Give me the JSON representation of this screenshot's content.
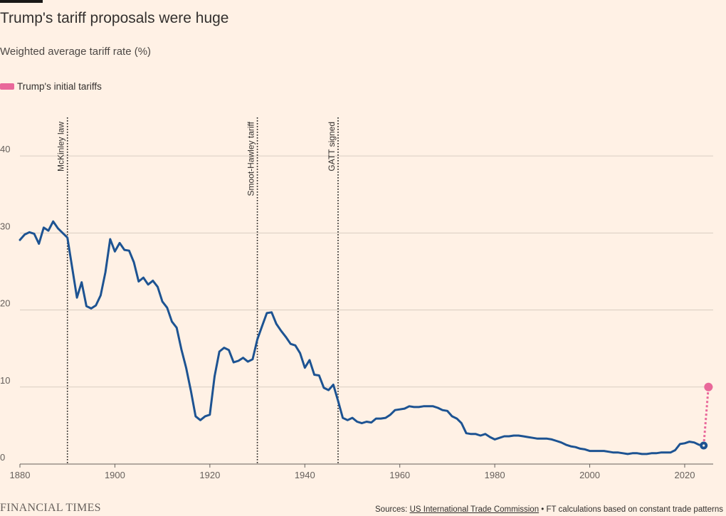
{
  "header": {
    "title": "Trump's tariff proposals were huge",
    "subtitle": "Weighted average tariff rate (%)"
  },
  "legend": {
    "label": "Trump's initial tariffs",
    "color": "#e9689a"
  },
  "footer": {
    "brand": "FINANCIAL TIMES",
    "source_prefix": "Sources: ",
    "source_link": "US International Trade Commission",
    "source_suffix": " • FT calculations based on constant trade patterns"
  },
  "colors": {
    "background": "#fff1e5",
    "series": "#1d5392",
    "trump": "#e9689a",
    "grid": "#d9cdc2",
    "axis": "#66605c"
  },
  "chart_data": {
    "type": "line",
    "title": "Trump's tariff proposals were huge",
    "subtitle": "Weighted average tariff rate (%)",
    "xlabel": "",
    "ylabel": "",
    "xlim": [
      1880,
      2026
    ],
    "ylim": [
      0,
      45
    ],
    "x_ticks": [
      1880,
      1900,
      1920,
      1940,
      1960,
      1980,
      2000,
      2020
    ],
    "y_ticks": [
      0,
      10,
      20,
      30,
      40
    ],
    "grid": true,
    "legend_placement": "top-left",
    "annotations": [
      {
        "x": 1890,
        "label": "McKinley law"
      },
      {
        "x": 1930,
        "label": "Smoot-Hawley tariff"
      },
      {
        "x": 1947,
        "label": "GATT signed"
      }
    ],
    "series": [
      {
        "points": [
          [
            1880,
            29.1
          ],
          [
            1881,
            29.8
          ],
          [
            1882,
            30.1
          ],
          [
            1883,
            29.9
          ],
          [
            1884,
            28.6
          ],
          [
            1885,
            30.7
          ],
          [
            1886,
            30.3
          ],
          [
            1887,
            31.5
          ],
          [
            1888,
            30.6
          ],
          [
            1889,
            30.0
          ],
          [
            1890,
            29.4
          ],
          [
            1891,
            25.5
          ],
          [
            1892,
            21.6
          ],
          [
            1893,
            23.6
          ],
          [
            1894,
            20.5
          ],
          [
            1895,
            20.2
          ],
          [
            1896,
            20.6
          ],
          [
            1897,
            21.9
          ],
          [
            1898,
            24.9
          ],
          [
            1899,
            29.2
          ],
          [
            1900,
            27.6
          ],
          [
            1901,
            28.7
          ],
          [
            1902,
            27.8
          ],
          [
            1903,
            27.7
          ],
          [
            1904,
            26.2
          ],
          [
            1905,
            23.7
          ],
          [
            1906,
            24.2
          ],
          [
            1907,
            23.3
          ],
          [
            1908,
            23.8
          ],
          [
            1909,
            23.0
          ],
          [
            1910,
            21.1
          ],
          [
            1911,
            20.3
          ],
          [
            1912,
            18.5
          ],
          [
            1913,
            17.7
          ],
          [
            1914,
            14.9
          ],
          [
            1915,
            12.5
          ],
          [
            1916,
            9.5
          ],
          [
            1917,
            6.2
          ],
          [
            1918,
            5.7
          ],
          [
            1919,
            6.2
          ],
          [
            1920,
            6.4
          ],
          [
            1921,
            11.4
          ],
          [
            1922,
            14.6
          ],
          [
            1923,
            15.1
          ],
          [
            1924,
            14.8
          ],
          [
            1925,
            13.2
          ],
          [
            1926,
            13.4
          ],
          [
            1927,
            13.8
          ],
          [
            1928,
            13.3
          ],
          [
            1929,
            13.6
          ],
          [
            1930,
            16.2
          ],
          [
            1931,
            17.9
          ],
          [
            1932,
            19.6
          ],
          [
            1933,
            19.7
          ],
          [
            1934,
            18.2
          ],
          [
            1935,
            17.3
          ],
          [
            1936,
            16.5
          ],
          [
            1937,
            15.6
          ],
          [
            1938,
            15.4
          ],
          [
            1939,
            14.4
          ],
          [
            1940,
            12.5
          ],
          [
            1941,
            13.5
          ],
          [
            1942,
            11.6
          ],
          [
            1943,
            11.5
          ],
          [
            1944,
            9.9
          ],
          [
            1945,
            9.6
          ],
          [
            1946,
            10.3
          ],
          [
            1947,
            8.2
          ],
          [
            1948,
            6.0
          ],
          [
            1949,
            5.7
          ],
          [
            1950,
            6.0
          ],
          [
            1951,
            5.5
          ],
          [
            1952,
            5.3
          ],
          [
            1953,
            5.5
          ],
          [
            1954,
            5.4
          ],
          [
            1955,
            5.9
          ],
          [
            1956,
            5.9
          ],
          [
            1957,
            6.0
          ],
          [
            1958,
            6.4
          ],
          [
            1959,
            7.0
          ],
          [
            1960,
            7.1
          ],
          [
            1961,
            7.2
          ],
          [
            1962,
            7.5
          ],
          [
            1963,
            7.4
          ],
          [
            1964,
            7.4
          ],
          [
            1965,
            7.5
          ],
          [
            1966,
            7.5
          ],
          [
            1967,
            7.5
          ],
          [
            1968,
            7.3
          ],
          [
            1969,
            7.0
          ],
          [
            1970,
            6.9
          ],
          [
            1971,
            6.2
          ],
          [
            1972,
            5.9
          ],
          [
            1973,
            5.3
          ],
          [
            1974,
            4.0
          ],
          [
            1975,
            3.9
          ],
          [
            1976,
            3.9
          ],
          [
            1977,
            3.7
          ],
          [
            1978,
            3.9
          ],
          [
            1979,
            3.5
          ],
          [
            1980,
            3.2
          ],
          [
            1981,
            3.4
          ],
          [
            1982,
            3.6
          ],
          [
            1983,
            3.6
          ],
          [
            1984,
            3.7
          ],
          [
            1985,
            3.7
          ],
          [
            1986,
            3.6
          ],
          [
            1987,
            3.5
          ],
          [
            1988,
            3.4
          ],
          [
            1989,
            3.3
          ],
          [
            1990,
            3.3
          ],
          [
            1991,
            3.3
          ],
          [
            1992,
            3.2
          ],
          [
            1993,
            3.0
          ],
          [
            1994,
            2.8
          ],
          [
            1995,
            2.5
          ],
          [
            1996,
            2.3
          ],
          [
            1997,
            2.2
          ],
          [
            1998,
            2.0
          ],
          [
            1999,
            1.9
          ],
          [
            2000,
            1.7
          ],
          [
            2001,
            1.7
          ],
          [
            2002,
            1.7
          ],
          [
            2003,
            1.7
          ],
          [
            2004,
            1.6
          ],
          [
            2005,
            1.5
          ],
          [
            2006,
            1.5
          ],
          [
            2007,
            1.4
          ],
          [
            2008,
            1.3
          ],
          [
            2009,
            1.4
          ],
          [
            2010,
            1.4
          ],
          [
            2011,
            1.3
          ],
          [
            2012,
            1.3
          ],
          [
            2013,
            1.4
          ],
          [
            2014,
            1.4
          ],
          [
            2015,
            1.5
          ],
          [
            2016,
            1.5
          ],
          [
            2017,
            1.5
          ],
          [
            2018,
            1.8
          ],
          [
            2019,
            2.6
          ],
          [
            2020,
            2.7
          ],
          [
            2021,
            2.9
          ],
          [
            2022,
            2.8
          ],
          [
            2023,
            2.5
          ],
          [
            2024,
            2.4
          ]
        ]
      },
      {
        "name": "Trump's initial tariffs",
        "points": [
          [
            2024,
            2.4
          ],
          [
            2025,
            10.0
          ]
        ]
      }
    ]
  }
}
